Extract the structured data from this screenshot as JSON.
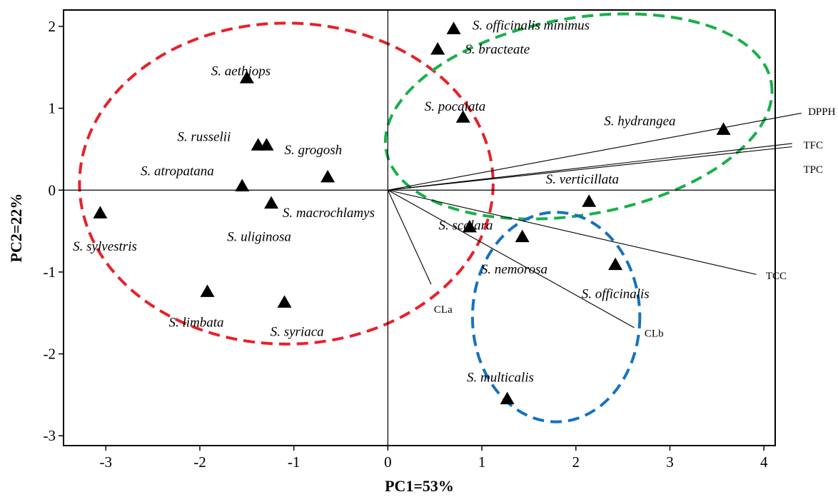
{
  "chart_data": {
    "type": "scatter",
    "title": "",
    "xlabel": "PC1=53%",
    "ylabel": "PC2=22%",
    "xlim": [
      -3.45,
      4.12
    ],
    "ylim": [
      -3.12,
      2.2
    ],
    "xticks": [
      -3,
      -2,
      -1,
      0,
      1,
      2,
      3,
      4
    ],
    "yticks": [
      -3,
      -2,
      -1,
      0,
      1,
      2
    ],
    "grid": false,
    "reference_lines": {
      "x": 0,
      "y": 0
    },
    "marker": "triangle",
    "points": [
      {
        "label": "S. officinalis minimus",
        "x": 0.7,
        "y": 1.97,
        "lx": 0.9,
        "ly": 1.96
      },
      {
        "label": "S. bracteate",
        "x": 0.53,
        "y": 1.72,
        "lx": 0.82,
        "ly": 1.67
      },
      {
        "label": "S. aethiops",
        "x": -1.5,
        "y": 1.37,
        "lx": -1.88,
        "ly": 1.4
      },
      {
        "label": "S. pocalata",
        "x": 0.8,
        "y": 0.89,
        "lx": 0.39,
        "ly": 0.97
      },
      {
        "label": "S. hydrangea",
        "x": 3.57,
        "y": 0.74,
        "lx": 2.3,
        "ly": 0.79
      },
      {
        "label": "S. russelii",
        "x": -1.38,
        "y": 0.55,
        "lx": -2.24,
        "ly": 0.6
      },
      {
        "label": "S. grogosh",
        "x": -1.29,
        "y": 0.55,
        "lx": -1.1,
        "ly": 0.44
      },
      {
        "label": "S. atropatana",
        "x": -0.64,
        "y": 0.16,
        "lx": -2.63,
        "ly": 0.18
      },
      {
        "label": "S. macrochlamys",
        "x": -1.55,
        "y": 0.05,
        "lx": -1.12,
        "ly": -0.33
      },
      {
        "label": "S. verticillata",
        "x": 2.14,
        "y": -0.14,
        "lx": 1.68,
        "ly": 0.08
      },
      {
        "label": "S. uliginosa",
        "x": -1.24,
        "y": -0.16,
        "lx": -1.71,
        "ly": -0.62
      },
      {
        "label": "S. sylvestris",
        "x": -3.06,
        "y": -0.28,
        "lx": -3.35,
        "ly": -0.74
      },
      {
        "label": "S. scalara",
        "x": 0.87,
        "y": -0.45,
        "lx": 0.54,
        "ly": -0.48
      },
      {
        "label": "S. nemorosa",
        "x": 1.43,
        "y": -0.57,
        "lx": 0.99,
        "ly": -1.02
      },
      {
        "label": "S. officinalis",
        "x": 2.42,
        "y": -0.91,
        "lx": 2.06,
        "ly": -1.32
      },
      {
        "label": "S. limbata",
        "x": -1.92,
        "y": -1.24,
        "lx": -2.33,
        "ly": -1.67
      },
      {
        "label": "S. syriaca",
        "x": -1.1,
        "y": -1.37,
        "lx": -1.25,
        "ly": -1.78
      },
      {
        "label": "S. multicalis",
        "x": 1.27,
        "y": -2.55,
        "lx": 0.84,
        "ly": -2.34
      }
    ],
    "vectors": [
      {
        "label": "DPPH",
        "x": 4.4,
        "y": 0.94,
        "lx": 4.47,
        "ly": 0.92
      },
      {
        "label": "TFC",
        "x": 4.3,
        "y": 0.57,
        "lx": 4.42,
        "ly": 0.51
      },
      {
        "label": "TPC",
        "x": 4.3,
        "y": 0.53,
        "lx": 4.42,
        "ly": 0.21
      },
      {
        "label": "TCC",
        "x": 3.92,
        "y": -1.03,
        "lx": 4.02,
        "ly": -1.09
      },
      {
        "label": "CLa",
        "x": 0.46,
        "y": -1.15,
        "lx": 0.49,
        "ly": -1.5
      },
      {
        "label": "CLb",
        "x": 2.62,
        "y": -1.68,
        "lx": 2.73,
        "ly": -1.79
      }
    ],
    "ellipses": [
      {
        "color": "#e8202a",
        "cx": -1.08,
        "cy": 0.08,
        "rx": 2.2,
        "ry": 1.96,
        "rotate": 0
      },
      {
        "color": "#18b04a",
        "cx": 2.03,
        "cy": 0.9,
        "rx": 2.08,
        "ry": 1.2,
        "rotate": 10
      },
      {
        "color": "#1572c0",
        "cx": 1.79,
        "cy": -1.55,
        "rx": 0.89,
        "ry": 1.28,
        "rotate": 0
      }
    ]
  }
}
